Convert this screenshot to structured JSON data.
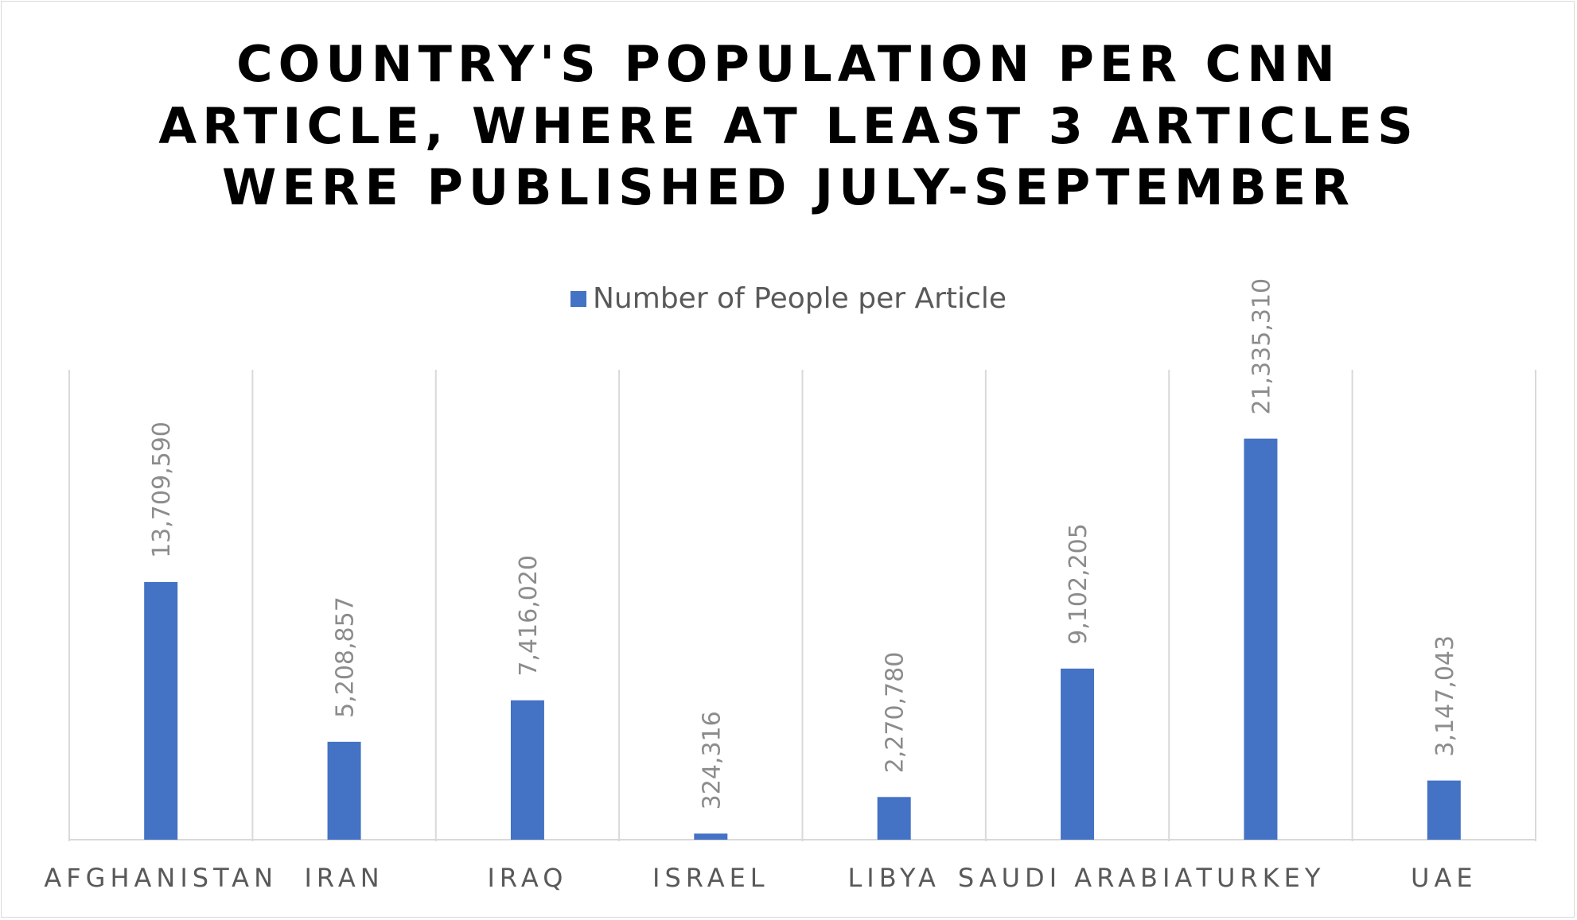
{
  "chart_data": {
    "type": "bar",
    "title_lines": [
      "COUNTRY'S POPULATION PER CNN",
      "ARTICLE, WHERE AT LEAST 3 ARTICLES",
      "WERE PUBLISHED JULY-SEPTEMBER"
    ],
    "legend_position": "top",
    "grid": "vertical category separators",
    "categories": [
      "AFGHANISTAN",
      "IRAN",
      "IRAQ",
      "ISRAEL",
      "LIBYA",
      "SAUDI ARABIA",
      "TURKEY",
      "UAE"
    ],
    "series": [
      {
        "name": "Number of People per Article",
        "color": "#4472c4",
        "values": [
          13709590,
          5208857,
          7416020,
          324316,
          2270780,
          9102205,
          21335310,
          3147043
        ],
        "data_labels": [
          "13,709,590",
          "5,208,857",
          "7,416,020",
          "324,316",
          "2,270,780",
          "9,102,205",
          "21,335,310",
          "3,147,043"
        ]
      }
    ],
    "ylim": [
      0,
      25000000
    ]
  }
}
